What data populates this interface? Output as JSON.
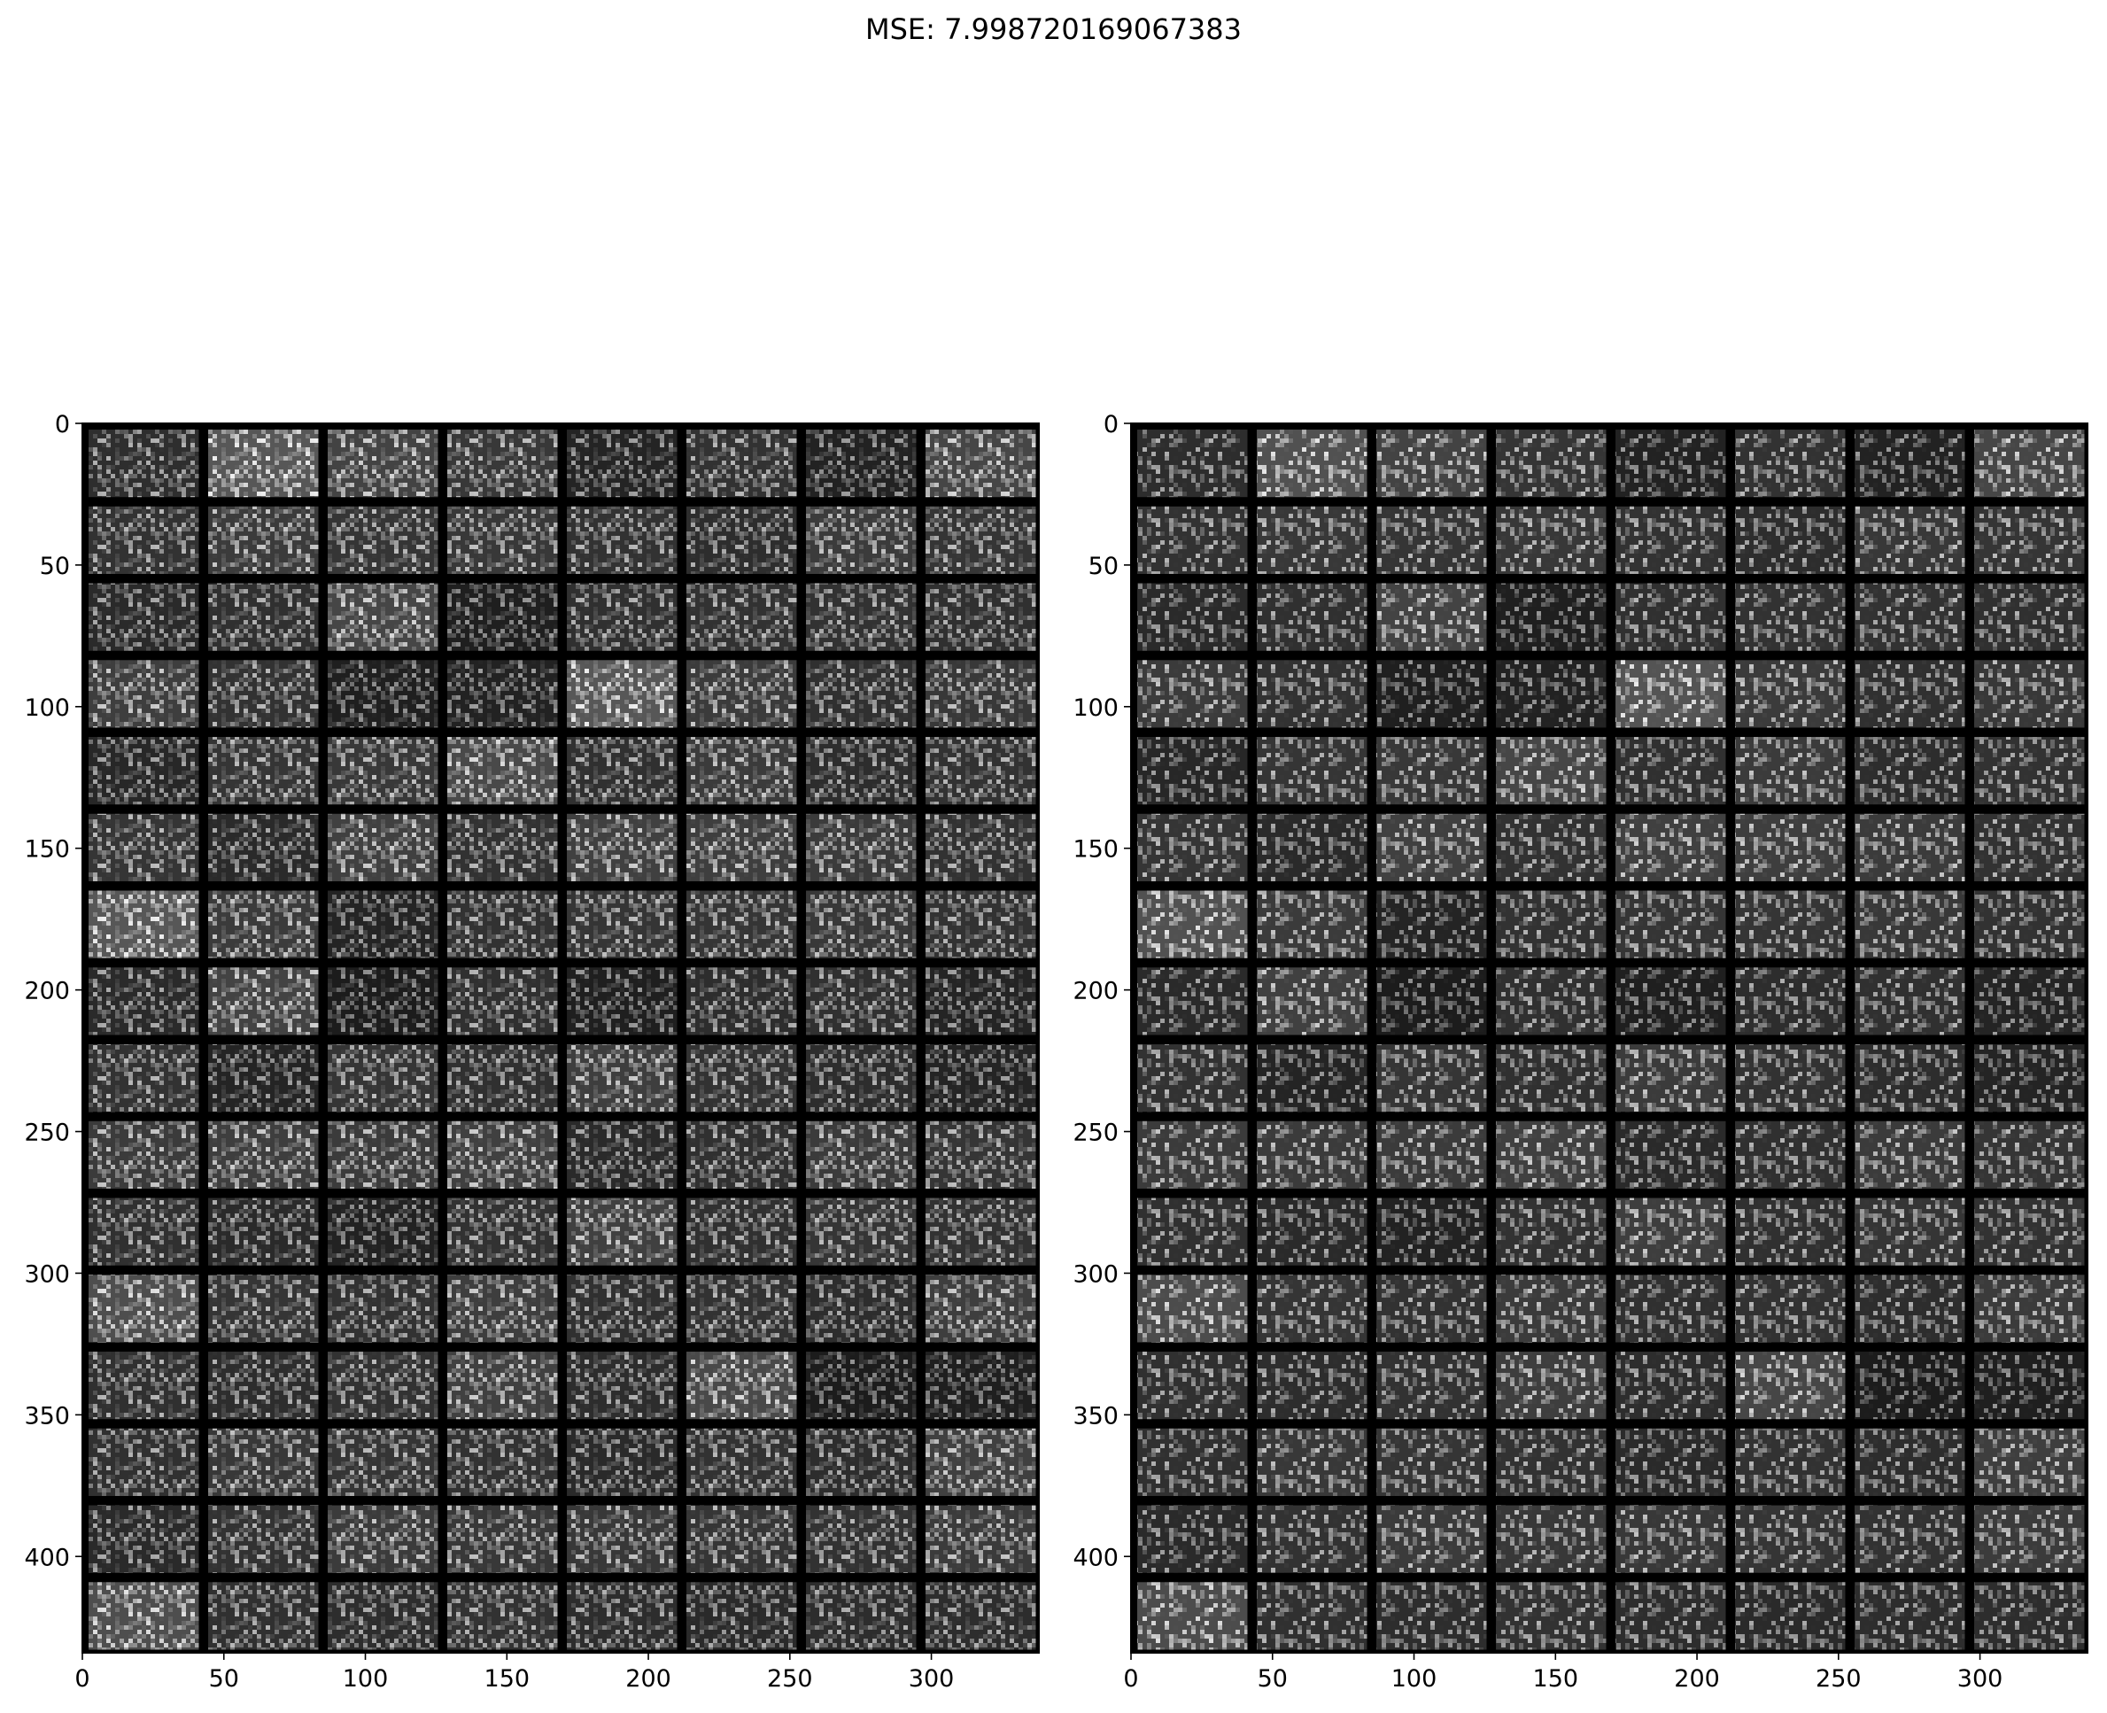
{
  "figure": {
    "suptitle": "MSE: 7.998720169067383"
  },
  "chart_data": [
    {
      "type": "heatmap",
      "title": "",
      "xlabel": "",
      "ylabel": "",
      "colormap": "gray",
      "xlim": [
        0,
        338
      ],
      "ylim": [
        434,
        0
      ],
      "grid": false,
      "xticks": [
        0,
        50,
        100,
        150,
        200,
        250,
        300
      ],
      "yticks": [
        0,
        50,
        100,
        150,
        200,
        250,
        300,
        350,
        400
      ],
      "tile_grid": {
        "rows": 16,
        "cols": 8
      },
      "tile_mean_gray": [
        [
          0.33,
          0.62,
          0.48,
          0.4,
          0.26,
          0.36,
          0.24,
          0.5
        ],
        [
          0.36,
          0.42,
          0.38,
          0.4,
          0.36,
          0.32,
          0.42,
          0.38
        ],
        [
          0.3,
          0.34,
          0.5,
          0.22,
          0.34,
          0.36,
          0.36,
          0.34
        ],
        [
          0.44,
          0.36,
          0.22,
          0.24,
          0.62,
          0.42,
          0.34,
          0.4
        ],
        [
          0.28,
          0.38,
          0.4,
          0.52,
          0.34,
          0.42,
          0.32,
          0.36
        ],
        [
          0.38,
          0.3,
          0.46,
          0.36,
          0.46,
          0.44,
          0.42,
          0.36
        ],
        [
          0.62,
          0.42,
          0.26,
          0.36,
          0.38,
          0.38,
          0.4,
          0.36
        ],
        [
          0.3,
          0.48,
          0.2,
          0.34,
          0.22,
          0.32,
          0.34,
          0.26
        ],
        [
          0.36,
          0.26,
          0.38,
          0.34,
          0.44,
          0.36,
          0.32,
          0.26
        ],
        [
          0.42,
          0.44,
          0.42,
          0.46,
          0.3,
          0.34,
          0.42,
          0.38
        ],
        [
          0.34,
          0.3,
          0.24,
          0.36,
          0.46,
          0.34,
          0.38,
          0.36
        ],
        [
          0.56,
          0.38,
          0.36,
          0.44,
          0.34,
          0.36,
          0.32,
          0.44
        ],
        [
          0.34,
          0.32,
          0.36,
          0.46,
          0.32,
          0.52,
          0.2,
          0.22
        ],
        [
          0.34,
          0.4,
          0.38,
          0.36,
          0.3,
          0.36,
          0.32,
          0.46
        ],
        [
          0.3,
          0.36,
          0.42,
          0.4,
          0.4,
          0.38,
          0.36,
          0.42
        ],
        [
          0.56,
          0.34,
          0.32,
          0.36,
          0.32,
          0.3,
          0.32,
          0.32
        ]
      ]
    },
    {
      "type": "heatmap",
      "title": "",
      "xlabel": "",
      "ylabel": "",
      "colormap": "gray",
      "xlim": [
        0,
        338
      ],
      "ylim": [
        434,
        0
      ],
      "grid": false,
      "xticks": [
        0,
        50,
        100,
        150,
        200,
        250,
        300
      ],
      "yticks": [
        0,
        50,
        100,
        150,
        200,
        250,
        300,
        350,
        400
      ],
      "tile_grid": {
        "rows": 16,
        "cols": 8
      },
      "tile_mean_gray": [
        [
          0.32,
          0.58,
          0.48,
          0.38,
          0.24,
          0.36,
          0.24,
          0.5
        ],
        [
          0.36,
          0.4,
          0.38,
          0.4,
          0.36,
          0.32,
          0.4,
          0.38
        ],
        [
          0.3,
          0.34,
          0.48,
          0.22,
          0.34,
          0.36,
          0.36,
          0.34
        ],
        [
          0.42,
          0.36,
          0.22,
          0.24,
          0.6,
          0.42,
          0.34,
          0.4
        ],
        [
          0.28,
          0.38,
          0.4,
          0.5,
          0.34,
          0.42,
          0.32,
          0.36
        ],
        [
          0.38,
          0.3,
          0.46,
          0.36,
          0.46,
          0.44,
          0.42,
          0.36
        ],
        [
          0.58,
          0.42,
          0.26,
          0.36,
          0.38,
          0.38,
          0.4,
          0.36
        ],
        [
          0.3,
          0.46,
          0.2,
          0.34,
          0.22,
          0.32,
          0.34,
          0.26
        ],
        [
          0.36,
          0.26,
          0.38,
          0.34,
          0.42,
          0.36,
          0.32,
          0.26
        ],
        [
          0.42,
          0.42,
          0.42,
          0.46,
          0.3,
          0.34,
          0.42,
          0.38
        ],
        [
          0.34,
          0.3,
          0.24,
          0.36,
          0.44,
          0.34,
          0.38,
          0.36
        ],
        [
          0.54,
          0.38,
          0.36,
          0.42,
          0.34,
          0.36,
          0.32,
          0.42
        ],
        [
          0.34,
          0.32,
          0.36,
          0.44,
          0.32,
          0.5,
          0.2,
          0.22
        ],
        [
          0.34,
          0.4,
          0.38,
          0.36,
          0.3,
          0.36,
          0.32,
          0.44
        ],
        [
          0.3,
          0.36,
          0.42,
          0.4,
          0.4,
          0.38,
          0.36,
          0.42
        ],
        [
          0.54,
          0.34,
          0.32,
          0.36,
          0.32,
          0.3,
          0.32,
          0.32
        ]
      ]
    }
  ]
}
